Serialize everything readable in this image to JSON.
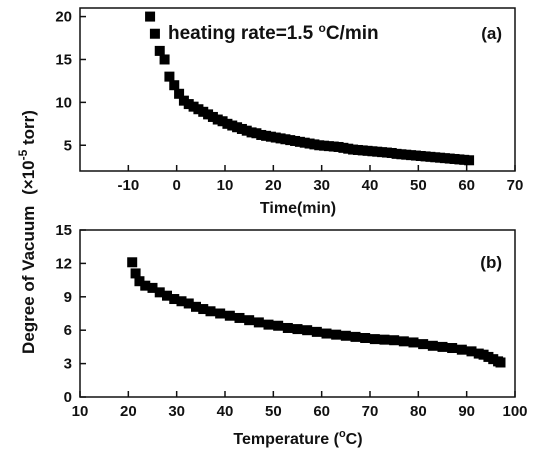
{
  "figure": {
    "shared_ylabel": "Degree of Vacuum",
    "shared_ylabel_unit": "(×10",
    "shared_ylabel_exp": "-5",
    "shared_ylabel_tail": " torr)"
  },
  "chart_data": [
    {
      "type": "scatter",
      "panel_label": "(a)",
      "annotation": "heating rate=1.5 ",
      "annotation_sup": "o",
      "annotation_tail": "C/min",
      "xlabel": "Time(min)",
      "ylabel": "",
      "xlim": [
        -20,
        70
      ],
      "ylim": [
        2,
        21
      ],
      "xticks": [
        -10,
        0,
        10,
        20,
        30,
        40,
        50,
        60,
        70
      ],
      "yticks": [
        5,
        10,
        15,
        20
      ],
      "marker": "square",
      "color": "#000000",
      "points": [
        [
          -5.5,
          20.0
        ],
        [
          -4.5,
          18.0
        ],
        [
          -3.5,
          16.0
        ],
        [
          -2.5,
          15.0
        ],
        [
          -1.5,
          13.0
        ],
        [
          -0.5,
          12.0
        ],
        [
          0.5,
          11.0
        ],
        [
          1.5,
          10.2
        ],
        [
          2.5,
          9.8
        ],
        [
          3.5,
          9.5
        ],
        [
          4.5,
          9.2
        ],
        [
          5.5,
          8.9
        ],
        [
          6.5,
          8.6
        ],
        [
          7.5,
          8.3
        ],
        [
          8.5,
          8.0
        ],
        [
          9.5,
          7.8
        ],
        [
          10.5,
          7.5
        ],
        [
          11.5,
          7.3
        ],
        [
          12.5,
          7.1
        ],
        [
          13.5,
          6.9
        ],
        [
          14.5,
          6.7
        ],
        [
          15.5,
          6.5
        ],
        [
          16.5,
          6.4
        ],
        [
          17.5,
          6.2
        ],
        [
          18.5,
          6.1
        ],
        [
          19.5,
          6.0
        ],
        [
          20.5,
          5.9
        ],
        [
          21.5,
          5.8
        ],
        [
          22.5,
          5.7
        ],
        [
          23.5,
          5.6
        ],
        [
          24.5,
          5.5
        ],
        [
          25.5,
          5.4
        ],
        [
          26.5,
          5.3
        ],
        [
          27.5,
          5.2
        ],
        [
          28.5,
          5.1
        ],
        [
          29.5,
          5.0
        ],
        [
          30.5,
          4.95
        ],
        [
          31.5,
          4.9
        ],
        [
          32.5,
          4.85
        ],
        [
          33.5,
          4.8
        ],
        [
          34.5,
          4.7
        ],
        [
          35.5,
          4.6
        ],
        [
          36.5,
          4.5
        ],
        [
          37.5,
          4.45
        ],
        [
          38.5,
          4.4
        ],
        [
          39.5,
          4.35
        ],
        [
          40.5,
          4.3
        ],
        [
          41.5,
          4.25
        ],
        [
          42.5,
          4.2
        ],
        [
          43.5,
          4.15
        ],
        [
          44.5,
          4.1
        ],
        [
          45.5,
          4.0
        ],
        [
          46.5,
          3.95
        ],
        [
          47.5,
          3.9
        ],
        [
          48.5,
          3.85
        ],
        [
          49.5,
          3.8
        ],
        [
          50.5,
          3.75
        ],
        [
          51.5,
          3.7
        ],
        [
          52.5,
          3.65
        ],
        [
          53.5,
          3.6
        ],
        [
          54.5,
          3.55
        ],
        [
          55.5,
          3.5
        ],
        [
          56.5,
          3.45
        ],
        [
          57.5,
          3.4
        ],
        [
          58.5,
          3.35
        ],
        [
          59.5,
          3.3
        ],
        [
          60.5,
          3.25
        ]
      ]
    },
    {
      "type": "scatter",
      "panel_label": "(b)",
      "xlabel": "Temperature (",
      "xlabel_sup": "o",
      "xlabel_tail": "C)",
      "ylabel": "",
      "xlim": [
        10,
        100
      ],
      "ylim": [
        0,
        15
      ],
      "xticks": [
        10,
        20,
        30,
        40,
        50,
        60,
        70,
        80,
        90,
        100
      ],
      "yticks": [
        0,
        3,
        6,
        9,
        12,
        15
      ],
      "marker": "square",
      "color": "#000000",
      "points": [
        [
          20.8,
          12.1
        ],
        [
          21.5,
          11.1
        ],
        [
          22.3,
          10.4
        ],
        [
          23.5,
          10.0
        ],
        [
          25.0,
          9.8
        ],
        [
          26.5,
          9.4
        ],
        [
          28.0,
          9.1
        ],
        [
          29.5,
          8.8
        ],
        [
          31.0,
          8.6
        ],
        [
          32.5,
          8.4
        ],
        [
          34.0,
          8.1
        ],
        [
          35.5,
          7.9
        ],
        [
          37.0,
          7.7
        ],
        [
          39.0,
          7.5
        ],
        [
          41.0,
          7.3
        ],
        [
          43.0,
          7.1
        ],
        [
          45.0,
          6.9
        ],
        [
          47.0,
          6.7
        ],
        [
          49.0,
          6.5
        ],
        [
          51.0,
          6.4
        ],
        [
          53.0,
          6.2
        ],
        [
          55.0,
          6.1
        ],
        [
          57.0,
          6.0
        ],
        [
          59.0,
          5.85
        ],
        [
          61.0,
          5.7
        ],
        [
          63.0,
          5.6
        ],
        [
          65.0,
          5.5
        ],
        [
          67.0,
          5.4
        ],
        [
          69.0,
          5.3
        ],
        [
          71.0,
          5.2
        ],
        [
          73.0,
          5.15
        ],
        [
          75.0,
          5.1
        ],
        [
          77.0,
          5.0
        ],
        [
          79.0,
          4.9
        ],
        [
          81.0,
          4.75
        ],
        [
          83.0,
          4.6
        ],
        [
          85.0,
          4.5
        ],
        [
          87.0,
          4.4
        ],
        [
          89.0,
          4.25
        ],
        [
          91.0,
          4.1
        ],
        [
          92.5,
          3.9
        ],
        [
          93.5,
          3.8
        ],
        [
          94.5,
          3.6
        ],
        [
          95.5,
          3.4
        ],
        [
          96.5,
          3.2
        ],
        [
          97.0,
          3.1
        ]
      ]
    }
  ]
}
